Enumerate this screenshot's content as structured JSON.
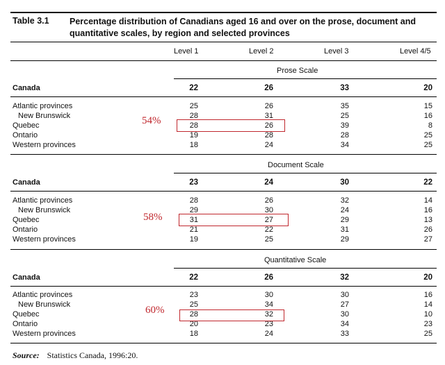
{
  "table": {
    "number": "Table 3.1",
    "title": "Percentage distribution of Canadians aged 16 and over on the prose, document and quantitative scales, by region and selected provinces",
    "columns": [
      "Level 1",
      "Level 2",
      "Level 3",
      "Level 4/5"
    ],
    "sections": [
      {
        "scale": "Prose Scale",
        "canada": {
          "label": "Canada",
          "values": [
            "22",
            "26",
            "33",
            "20"
          ]
        },
        "rows": [
          {
            "label": "Atlantic provinces",
            "values": [
              "25",
              "26",
              "35",
              "15"
            ]
          },
          {
            "label": "New Brunswick",
            "values": [
              "28",
              "31",
              "25",
              "16"
            ]
          },
          {
            "label": "Quebec",
            "values": [
              "28",
              "26",
              "39",
              "8"
            ]
          },
          {
            "label": "Ontario",
            "values": [
              "19",
              "28",
              "28",
              "25"
            ]
          },
          {
            "label": "Western provinces",
            "values": [
              "18",
              "24",
              "34",
              "25"
            ]
          }
        ],
        "annotation": "54%"
      },
      {
        "scale": "Document Scale",
        "canada": {
          "label": "Canada",
          "values": [
            "23",
            "24",
            "30",
            "22"
          ]
        },
        "rows": [
          {
            "label": "Atlantic provinces",
            "values": [
              "28",
              "26",
              "32",
              "14"
            ]
          },
          {
            "label": "New Brunswick",
            "values": [
              "29",
              "30",
              "24",
              "16"
            ]
          },
          {
            "label": "Quebec",
            "values": [
              "31",
              "27",
              "29",
              "13"
            ]
          },
          {
            "label": "Ontario",
            "values": [
              "21",
              "22",
              "31",
              "26"
            ]
          },
          {
            "label": "Western provinces",
            "values": [
              "19",
              "25",
              "29",
              "27"
            ]
          }
        ],
        "annotation": "58%"
      },
      {
        "scale": "Quantitative Scale",
        "canada": {
          "label": "Canada",
          "values": [
            "22",
            "26",
            "32",
            "20"
          ]
        },
        "rows": [
          {
            "label": "Atlantic provinces",
            "values": [
              "23",
              "30",
              "30",
              "16"
            ]
          },
          {
            "label": "New Brunswick",
            "values": [
              "25",
              "34",
              "27",
              "14"
            ]
          },
          {
            "label": "Quebec",
            "values": [
              "28",
              "32",
              "30",
              "10"
            ]
          },
          {
            "label": "Ontario",
            "values": [
              "20",
              "23",
              "34",
              "23"
            ]
          },
          {
            "label": "Western provinces",
            "values": [
              "18",
              "24",
              "33",
              "25"
            ]
          }
        ],
        "annotation": "60%"
      }
    ],
    "source_label": "Source:",
    "source_text": "Statistics Canada, 1996:20.",
    "annotation_color": "#c0272d"
  }
}
